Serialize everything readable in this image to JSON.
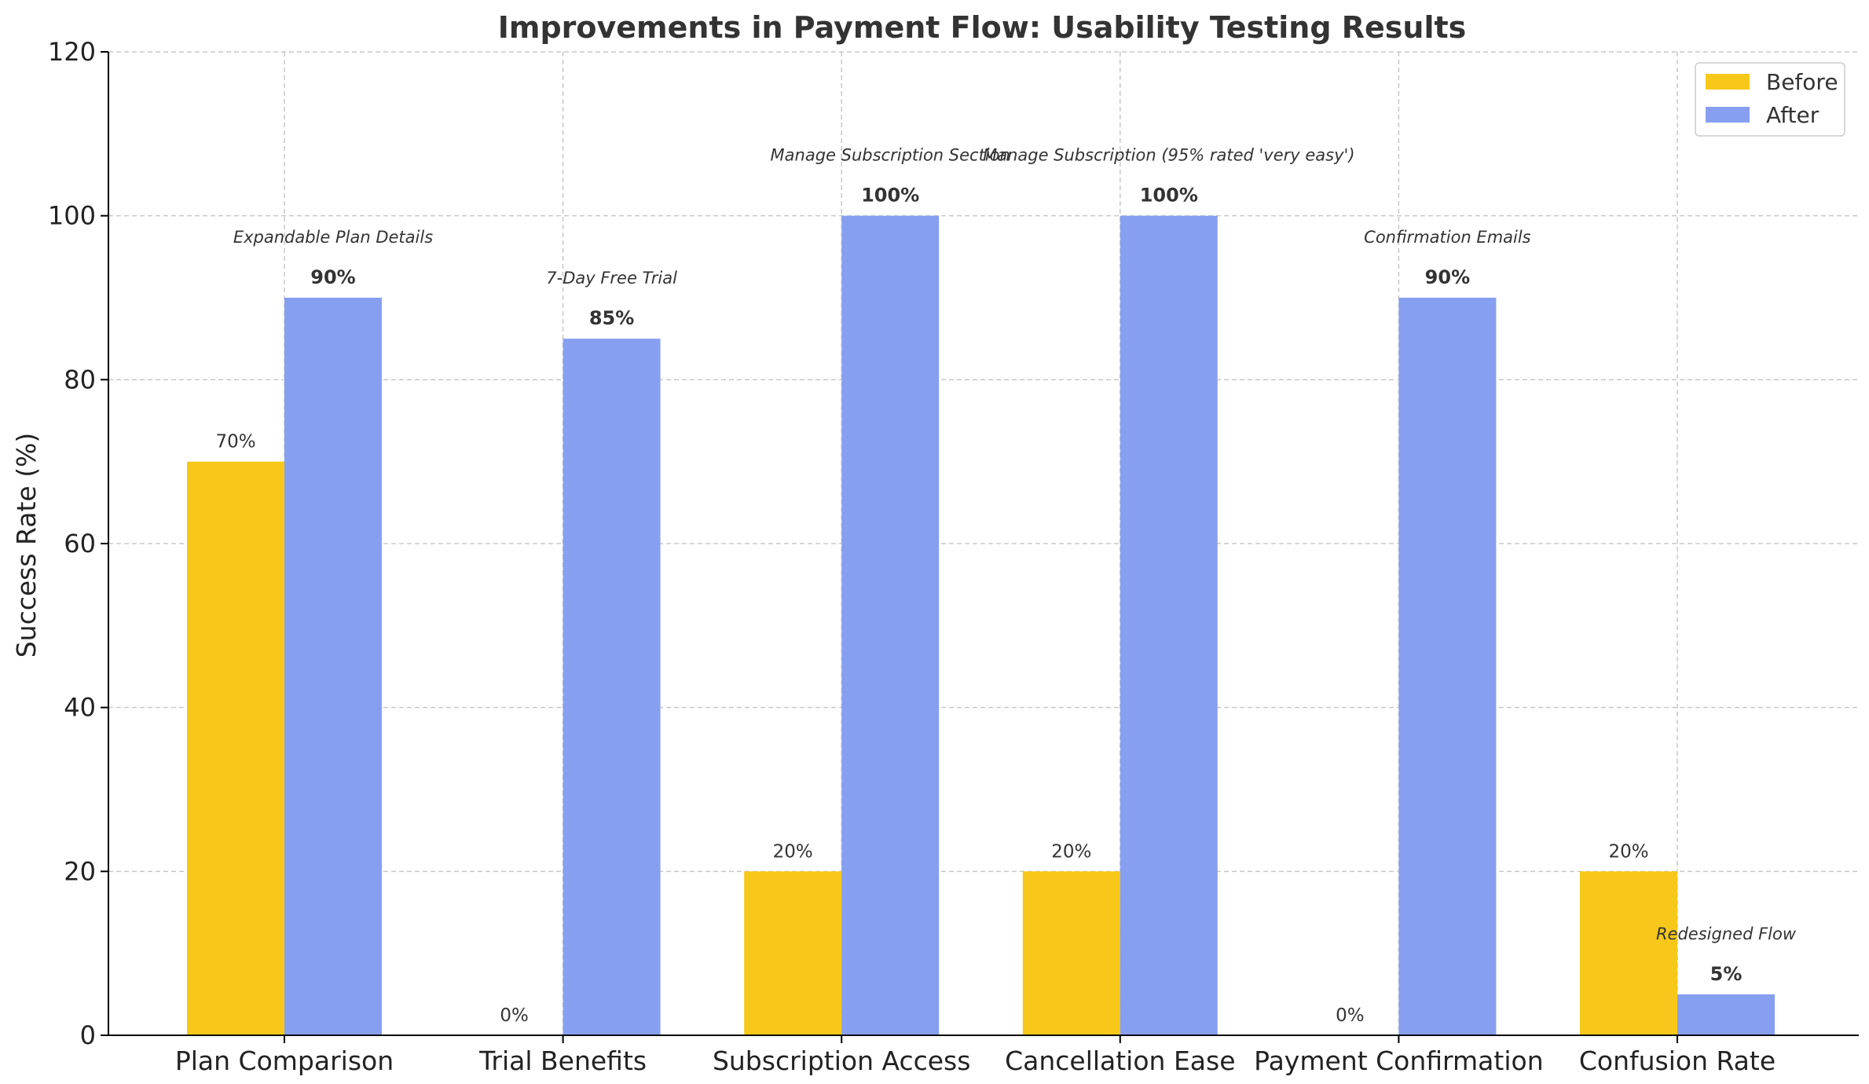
{
  "chart_data": {
    "type": "bar",
    "title": "Improvements in Payment Flow: Usability Testing Results",
    "xlabel": "",
    "ylabel": "Success Rate (%)",
    "ylim": [
      0,
      120
    ],
    "yticks": [
      0,
      20,
      40,
      60,
      80,
      100,
      120
    ],
    "grid": true,
    "legend_position": "top-right",
    "categories": [
      "Plan Comparison",
      "Trial Benefits",
      "Subscription Access",
      "Cancellation Ease",
      "Payment Confirmation",
      "Confusion Rate"
    ],
    "series": [
      {
        "name": "Before",
        "color": "#f7c819",
        "values": [
          70,
          0,
          20,
          20,
          0,
          20
        ],
        "labels": [
          "70%",
          "0%",
          "20%",
          "20%",
          "0%",
          "20%"
        ]
      },
      {
        "name": "After",
        "color": "#879ff0",
        "values": [
          90,
          85,
          100,
          100,
          90,
          5
        ],
        "labels": [
          "90%",
          "85%",
          "100%",
          "100%",
          "90%",
          "5%"
        ]
      }
    ],
    "annotations": [
      "Expandable Plan Details",
      "7-Day Free Trial",
      "Manage Subscription Section",
      "Manage Subscription (95% rated 'very easy')",
      "Confirmation Emails",
      "Redesigned Flow"
    ]
  }
}
